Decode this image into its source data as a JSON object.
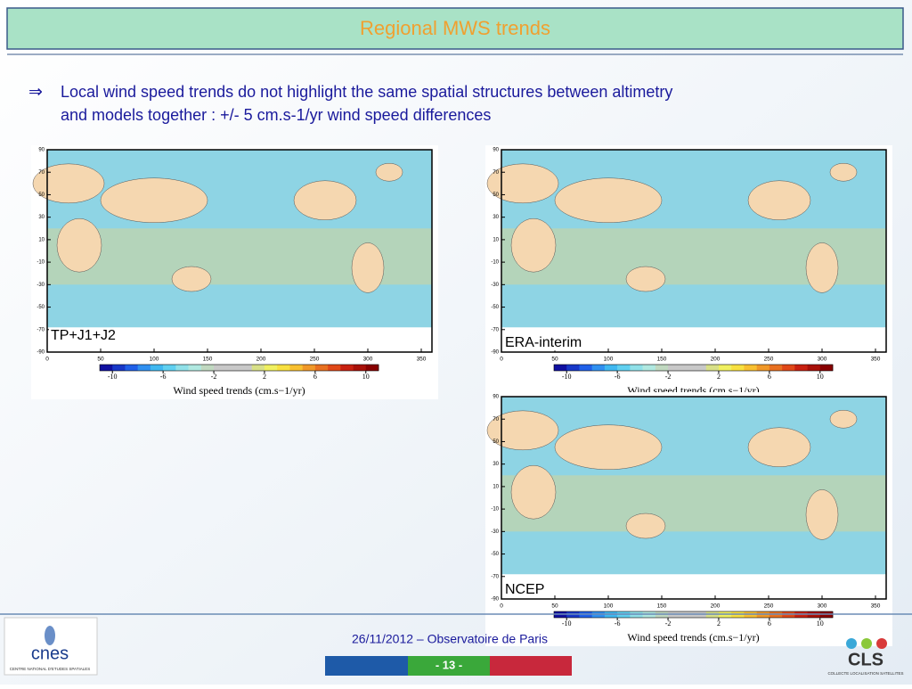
{
  "header": {
    "title": "Regional MWS trends"
  },
  "bullet": {
    "symbol": "⇒",
    "lines": [
      "Local wind speed trends do not highlight the same spatial structures between altimetry",
      "and models together : +/- 5 cm.s-1/yr  wind speed differences"
    ]
  },
  "map_axes": {
    "xlim": [
      0,
      360
    ],
    "xticks": [
      0,
      50,
      100,
      150,
      200,
      250,
      300,
      350
    ],
    "ylim": [
      -90,
      90
    ],
    "yticks": [
      90,
      70,
      50,
      30,
      10,
      -10,
      -30,
      -50,
      -70,
      -90
    ]
  },
  "colorbar": {
    "lim": [
      -11,
      11
    ],
    "ticks": [
      -10,
      -6,
      -2,
      2,
      6,
      10
    ],
    "label": "Wind speed trends (cm.s−1/yr)"
  },
  "panels": [
    {
      "label": "TP+J1+J2"
    },
    {
      "label": "ERA-interim"
    },
    {
      "label": "NCEP"
    }
  ],
  "footer": {
    "date": "26/11/2012 – Observatoire de Paris",
    "page": "- 13 -",
    "left_logo": "cnes",
    "left_logo_caption": "CENTRE NATIONAL D'ETUDES SPATIALES",
    "right_logo": "CLS",
    "right_logo_caption": "COLLECTE LOCALISATION SATELLITES"
  }
}
